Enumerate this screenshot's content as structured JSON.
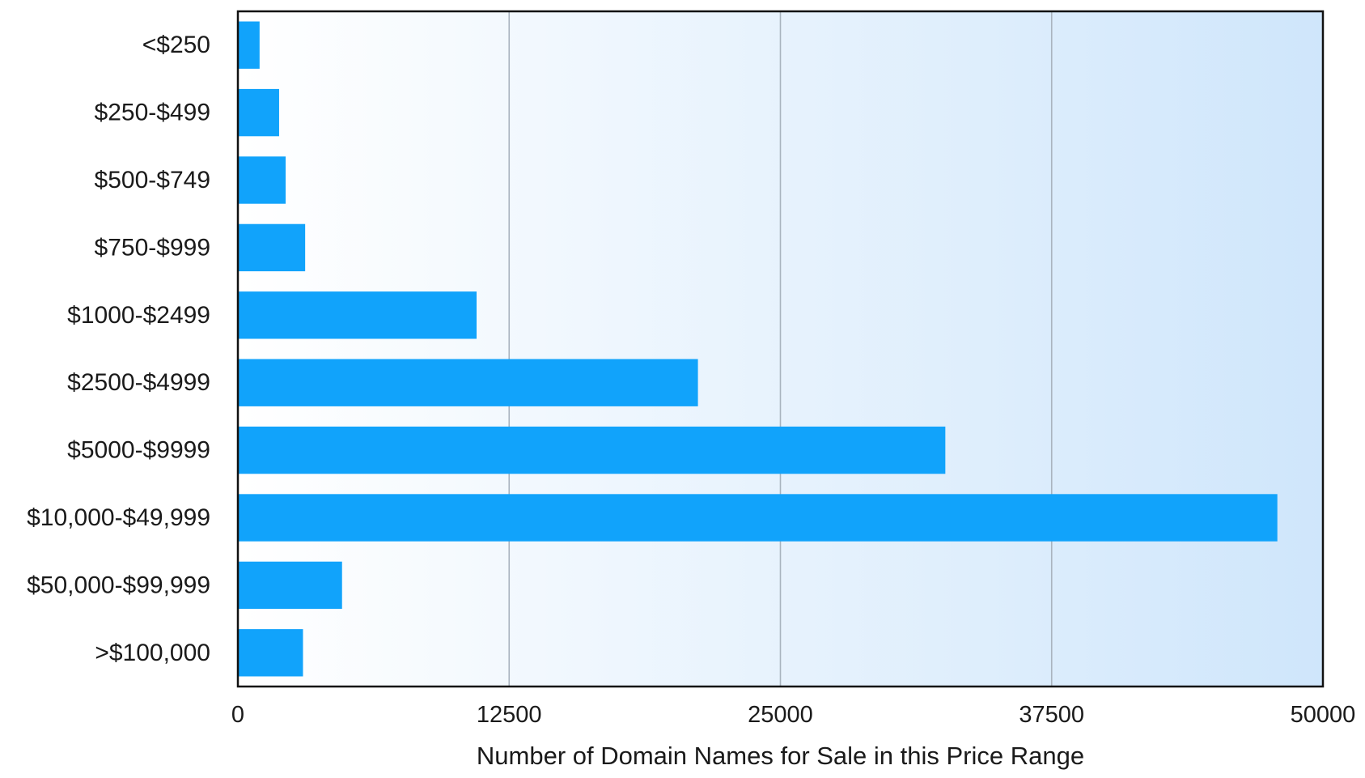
{
  "chart_data": {
    "type": "bar",
    "orientation": "horizontal",
    "title": "",
    "xlabel": "Number of Domain Names for Sale in this Price Range",
    "ylabel": "",
    "xlim": [
      0,
      50000
    ],
    "xticks": [
      "0",
      "12500",
      "25000",
      "37500",
      "50000"
    ],
    "grid": true,
    "categories": [
      "<$250",
      "$250-$499",
      "$500-$749",
      "$750-$999",
      "$1000-$2499",
      "$2500-$4999",
      "$5000-$9999",
      "$10,000-$49,999",
      "$50,000-$99,999",
      ">$100,000"
    ],
    "values": [
      1000,
      1900,
      2200,
      3100,
      11000,
      21200,
      32600,
      47900,
      4800,
      3000
    ],
    "colors": {
      "bar": "#11a3fb",
      "background_start": "#ffffff",
      "background_end": "#cfe6fb",
      "grid": "#a9b4bf",
      "frame": "#111111",
      "text": "#1a1a1a"
    }
  }
}
